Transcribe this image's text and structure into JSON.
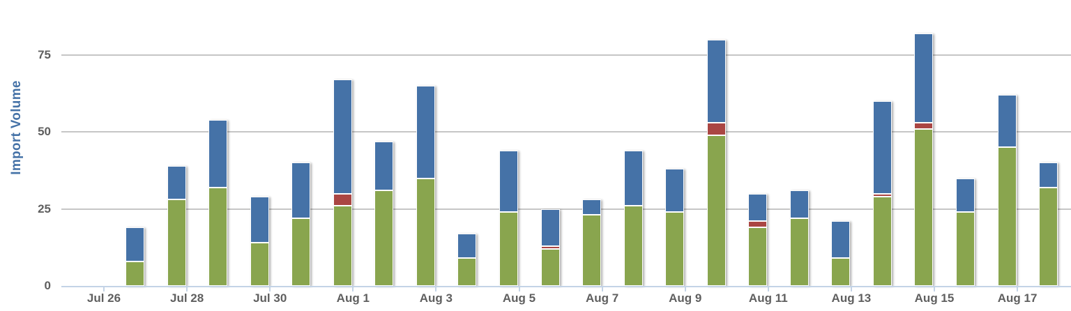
{
  "chart": {
    "y_axis_title": "Import Volume",
    "accent_color": "#4572A7",
    "label_color": "#5f5f5f",
    "grid_color": "#c6c6c6",
    "axis_line_color": "#c3d3e6",
    "y_tick_labels": [
      "0",
      "25",
      "50",
      "75"
    ],
    "x_tick_labels": [
      "Jul 26",
      "Jul 28",
      "Jul 30",
      "Aug 1",
      "Aug 3",
      "Aug 5",
      "Aug 7",
      "Aug 9",
      "Aug 11",
      "Aug 13",
      "Aug 15",
      "Aug 17"
    ]
  },
  "chart_data": {
    "type": "bar",
    "stacked": true,
    "title": "",
    "xlabel": "",
    "ylabel": "Import Volume",
    "ylim": [
      0,
      92
    ],
    "y_ticks": [
      0,
      25,
      50,
      75
    ],
    "grid": "horizontal",
    "legend": "none",
    "categories": [
      "Jul 27",
      "Jul 28",
      "Jul 29",
      "Jul 30",
      "Jul 31",
      "Aug 1",
      "Aug 2",
      "Aug 3",
      "Aug 4",
      "Aug 5",
      "Aug 6",
      "Aug 7",
      "Aug 8",
      "Aug 9",
      "Aug 10",
      "Aug 11",
      "Aug 12",
      "Aug 13",
      "Aug 14",
      "Aug 15",
      "Aug 16",
      "Aug 17",
      "Aug 18"
    ],
    "series": [
      {
        "id": "green",
        "color": "#89A54E",
        "stack_position": "bottom",
        "values": [
          8,
          28,
          32,
          14,
          22,
          26,
          31,
          35,
          9,
          24,
          12,
          23,
          26,
          24,
          49,
          19,
          22,
          9,
          29,
          51,
          24,
          45,
          32
        ]
      },
      {
        "id": "red",
        "color": "#AA4643",
        "stack_position": "middle",
        "values": [
          0,
          0,
          0,
          0,
          0,
          4,
          0,
          0,
          0,
          0,
          1,
          0,
          0,
          0,
          4,
          2,
          0,
          0,
          1,
          2,
          0,
          0,
          0
        ]
      },
      {
        "id": "blue",
        "color": "#4572A7",
        "stack_position": "top",
        "values": [
          11,
          11,
          22,
          15,
          18,
          37,
          16,
          30,
          8,
          20,
          12,
          5,
          18,
          14,
          27,
          9,
          9,
          12,
          30,
          29,
          11,
          17,
          8
        ]
      }
    ],
    "totals": [
      19,
      39,
      54,
      29,
      40,
      67,
      47,
      65,
      17,
      44,
      25,
      28,
      44,
      38,
      80,
      30,
      31,
      21,
      60,
      82,
      35,
      62,
      40
    ]
  }
}
